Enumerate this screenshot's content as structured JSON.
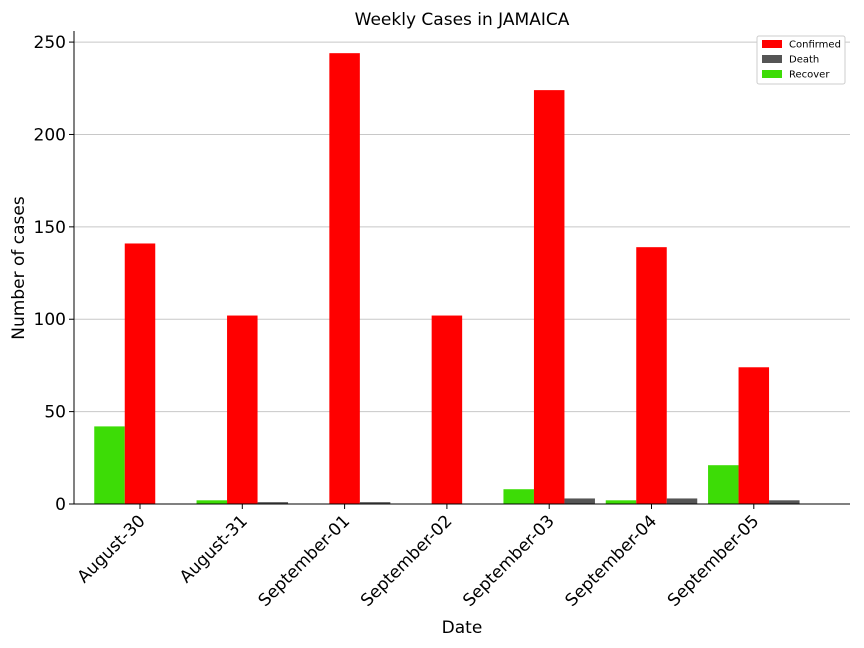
{
  "chart_data": {
    "type": "bar",
    "title": "Weekly Cases in JAMAICA",
    "xlabel": "Date",
    "ylabel": "Number of cases",
    "categories": [
      "August-30",
      "August-31",
      "September-01",
      "September-02",
      "September-03",
      "September-04",
      "September-05"
    ],
    "series": [
      {
        "name": "Recover",
        "color": "#3ddc06",
        "values": [
          42,
          2,
          0,
          0,
          8,
          2,
          21
        ]
      },
      {
        "name": "Confirmed",
        "color": "#ff0000",
        "values": [
          141,
          102,
          244,
          102,
          224,
          139,
          74
        ]
      },
      {
        "name": "Death",
        "color": "#555555",
        "values": [
          0,
          1,
          1,
          0,
          3,
          3,
          2
        ]
      }
    ],
    "legend_order": [
      "Confirmed",
      "Death",
      "Recover"
    ],
    "ylim": [
      0,
      256
    ],
    "yticks": [
      0,
      50,
      100,
      150,
      200,
      250
    ],
    "grid": "horizontal",
    "legend_position": "top-right"
  }
}
